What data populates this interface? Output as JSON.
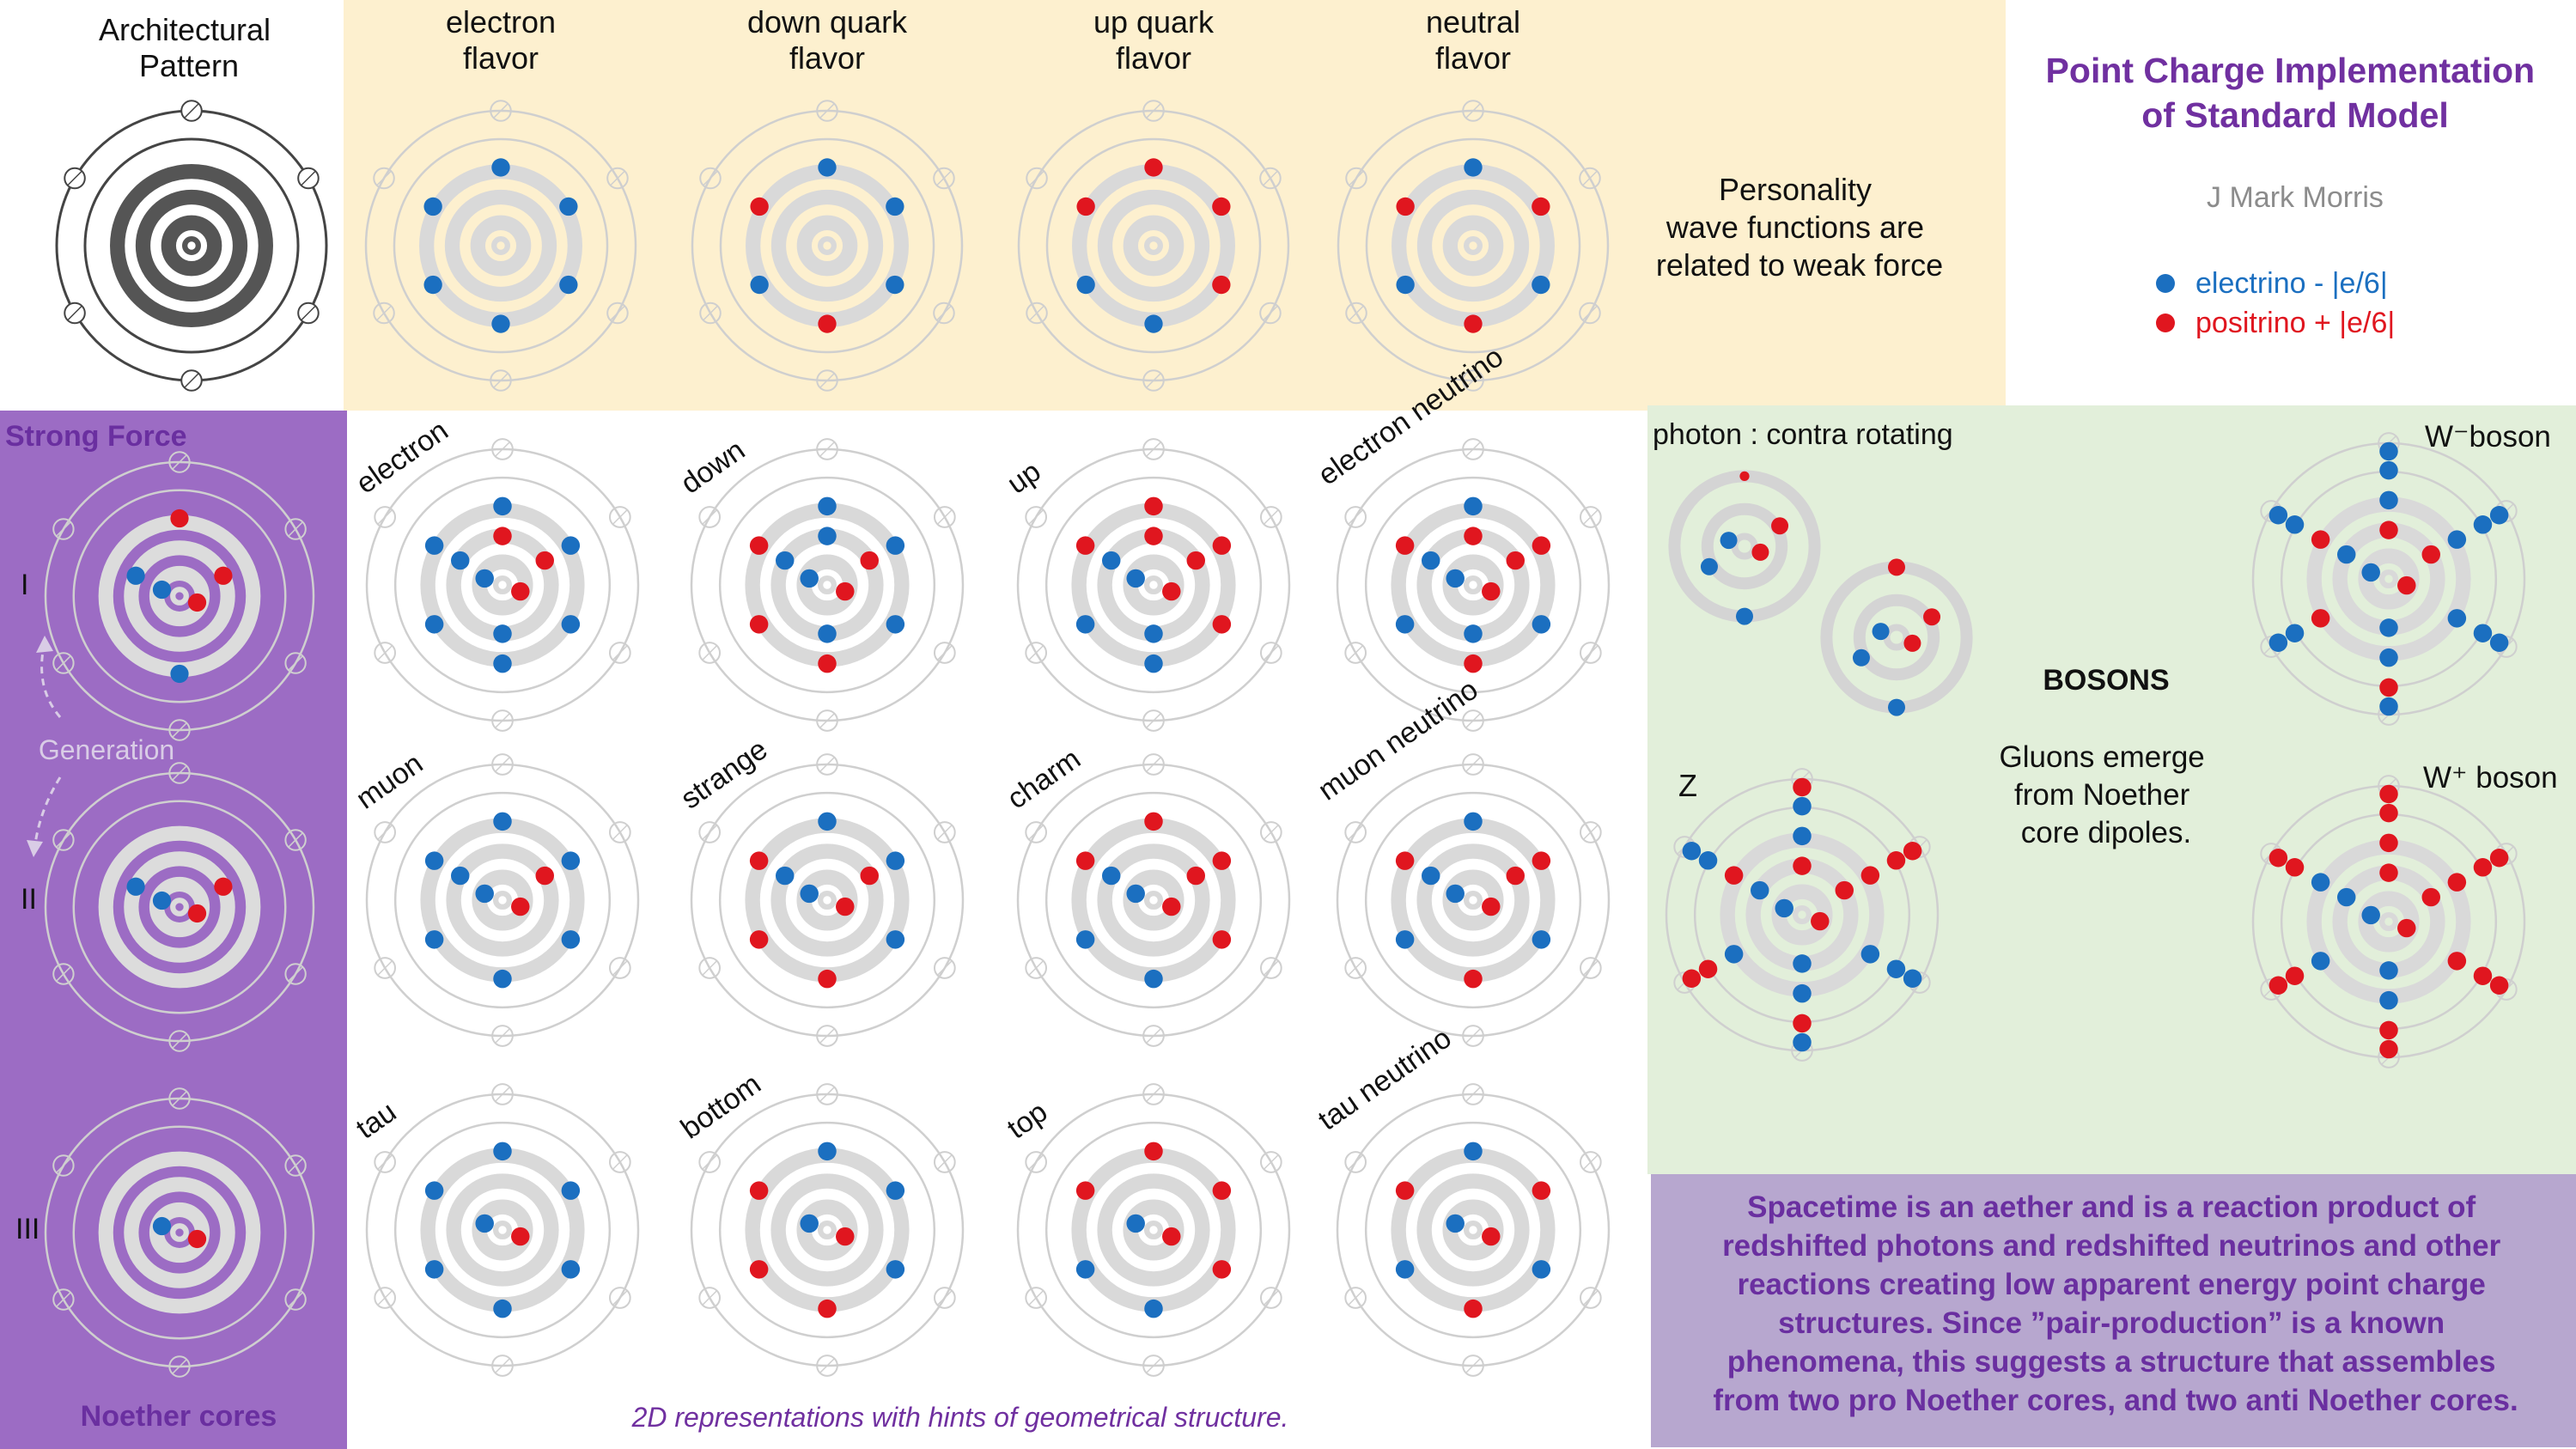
{
  "header": {
    "arch_title": [
      "Architectural",
      "Pattern"
    ],
    "columns": [
      {
        "label": [
          "electron",
          "flavor"
        ]
      },
      {
        "label": [
          "down quark",
          "flavor"
        ]
      },
      {
        "label": [
          "up quark",
          "flavor"
        ]
      },
      {
        "label": [
          "neutral",
          "flavor"
        ]
      }
    ],
    "personality_note": [
      "Personality",
      "wave functions are",
      "related to weak force"
    ]
  },
  "title_panel": {
    "title": [
      "Point Charge Implementation",
      "of Standard Model"
    ],
    "author": "J Mark Morris",
    "legend": [
      {
        "label": "electrino - |e/6|",
        "charge": "-",
        "color": "#1b6fc0"
      },
      {
        "label": "positrino + |e/6|",
        "charge": "+",
        "color": "#e0161f"
      }
    ]
  },
  "left_panel": {
    "title": "Strong Force",
    "generation_label": "Generation",
    "rows": [
      "I",
      "II",
      "III"
    ],
    "footer": "Noether cores"
  },
  "particles": [
    {
      "label": "electron",
      "row": 1,
      "col": 1
    },
    {
      "label": "down",
      "row": 1,
      "col": 2
    },
    {
      "label": "up",
      "row": 1,
      "col": 3
    },
    {
      "label": "electron neutrino",
      "row": 1,
      "col": 4
    },
    {
      "label": "muon",
      "row": 2,
      "col": 1
    },
    {
      "label": "strange",
      "row": 2,
      "col": 2
    },
    {
      "label": "charm",
      "row": 2,
      "col": 3
    },
    {
      "label": "muon neutrino",
      "row": 2,
      "col": 4
    },
    {
      "label": "tau",
      "row": 3,
      "col": 1
    },
    {
      "label": "bottom",
      "row": 3,
      "col": 2
    },
    {
      "label": "top",
      "row": 3,
      "col": 3
    },
    {
      "label": "tau neutrino",
      "row": 3,
      "col": 4
    }
  ],
  "grid_caption": "2D representations with hints of geometrical structure.",
  "bosons": {
    "photon_label": "photon : contra rotating",
    "heading": "BOSONS",
    "gluon_note": [
      "Gluons emerge",
      "from Noether",
      "core dipoles."
    ],
    "z_label": "Z",
    "w_minus_label": "W⁻boson",
    "w_plus_label": "W⁺ boson"
  },
  "conclusion": [
    "Spacetime is an aether and is a reaction product of",
    "redshifted photons and redshifted neutrinos and other",
    "reactions creating low apparent energy point charge",
    "structures.  Since ”pair-production” is a known",
    "phenomena, this suggests a structure that assembles",
    "from two pro Noether cores, and two anti Noether cores."
  ],
  "colors": {
    "electrino": "#1b6fc0",
    "positrino": "#e0161f",
    "header_band": "#fdf0cf",
    "left_panel": "#9c6cc4",
    "boson_panel": "#e2efda",
    "conclusion_panel": "#b7a7cf",
    "accent_purple": "#7030a0"
  }
}
